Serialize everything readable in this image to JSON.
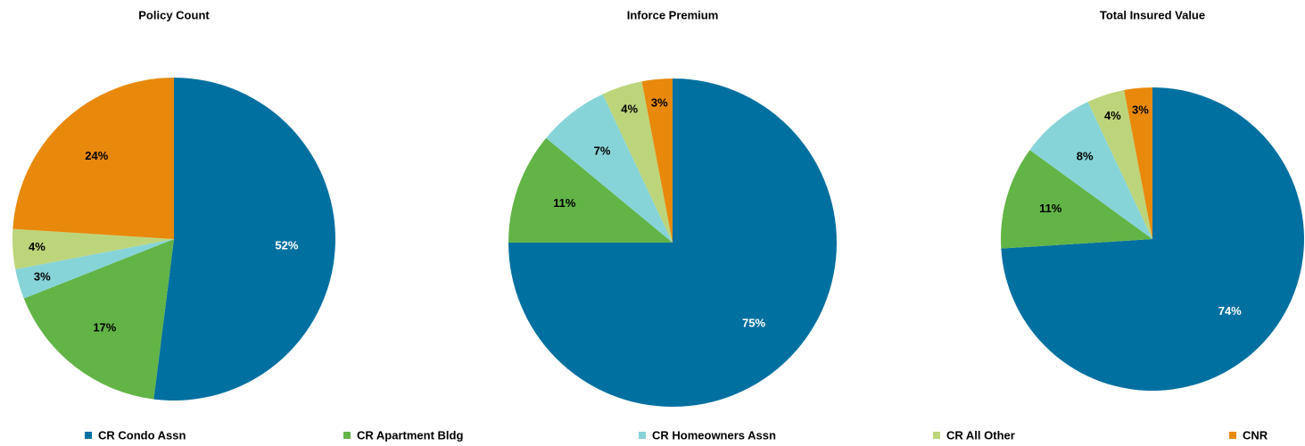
{
  "chart_data": [
    {
      "type": "pie",
      "title": "Policy Count",
      "values": [
        52,
        17,
        3,
        4,
        24
      ],
      "value_labels": [
        "52%",
        "17%",
        "3%",
        "4%",
        "24%"
      ]
    },
    {
      "type": "pie",
      "title": "Inforce Premium",
      "values": [
        75,
        11,
        7,
        4,
        3
      ],
      "value_labels": [
        "75%",
        "11%",
        "7%",
        "4%",
        "3%"
      ]
    },
    {
      "type": "pie",
      "title": "Total Insured Value",
      "values": [
        74,
        11,
        8,
        4,
        3
      ],
      "value_labels": [
        "74%",
        "11%",
        "8%",
        "4%",
        "3%"
      ]
    }
  ],
  "legend": {
    "categories": [
      "CR Condo Assn",
      "CR Apartment Bldg",
      "CR Homeowners Assn",
      "CR All Other",
      "CNR"
    ],
    "colors": [
      "#0070a0",
      "#62b446",
      "#86d4d8",
      "#bdd57a",
      "#e8890c"
    ]
  }
}
